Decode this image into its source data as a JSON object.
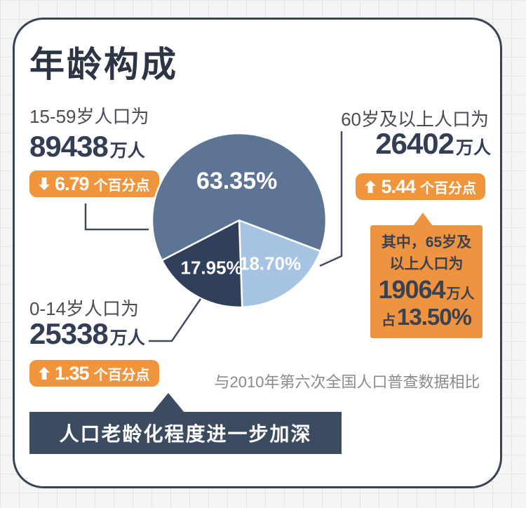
{
  "title": "年龄构成",
  "panels": {
    "working_age": {
      "label": "15-59岁人口为",
      "value": "89438",
      "unit": "万人",
      "change": {
        "direction": "down",
        "value": "6.79",
        "suffix": "个百分点"
      }
    },
    "elderly_60": {
      "label": "60岁及以上人口为",
      "value": "26402",
      "unit": "万人",
      "change": {
        "direction": "up",
        "value": "5.44",
        "suffix": "个百分点"
      }
    },
    "children": {
      "label": "0-14岁人口为",
      "value": "25338",
      "unit": "万人",
      "change": {
        "direction": "up",
        "value": "1.35",
        "suffix": "个百分点"
      }
    },
    "elderly_65_callout": {
      "line1": "其中，65岁及",
      "line2": "以上人口为",
      "value": "19064",
      "unit": "万人",
      "share_prefix": "占",
      "share_value": "13.50%"
    }
  },
  "comparison_note": "与2010年第六次全国人口普查数据相比",
  "footer_banner": "人口老龄化程度进一步加深",
  "colors": {
    "accent_orange": "#F0953C",
    "callout_orange": "#EE9440",
    "banner_navy": "#3D4B61",
    "number_navy": "#333E55",
    "slice_slate_blue": "#5D7495",
    "slice_light_blue": "#A6C3E4",
    "slice_dark_navy": "#31405A"
  },
  "chart_data": {
    "type": "pie",
    "title": "年龄构成",
    "unit": "percent of total population",
    "slices": [
      {
        "label": "60岁及以上",
        "value": 18.7,
        "display": "18.70%",
        "color": "#A6C3E4"
      },
      {
        "label": "0-14岁",
        "value": 17.95,
        "display": "17.95%",
        "color": "#31405A"
      },
      {
        "label": "15-59岁",
        "value": 63.35,
        "display": "63.35%",
        "color": "#5D7495"
      }
    ],
    "population_wan": {
      "15-59岁": 89438,
      "60岁及以上": 26402,
      "0-14岁": 25338,
      "65岁及以上": 19064
    },
    "change_pct_points_vs_2010": {
      "15-59岁": -6.79,
      "60岁及以上": 5.44,
      "0-14岁": 1.35
    },
    "share_65_plus": "13.50%",
    "legend_position": "none",
    "labels_on_slices": true
  }
}
